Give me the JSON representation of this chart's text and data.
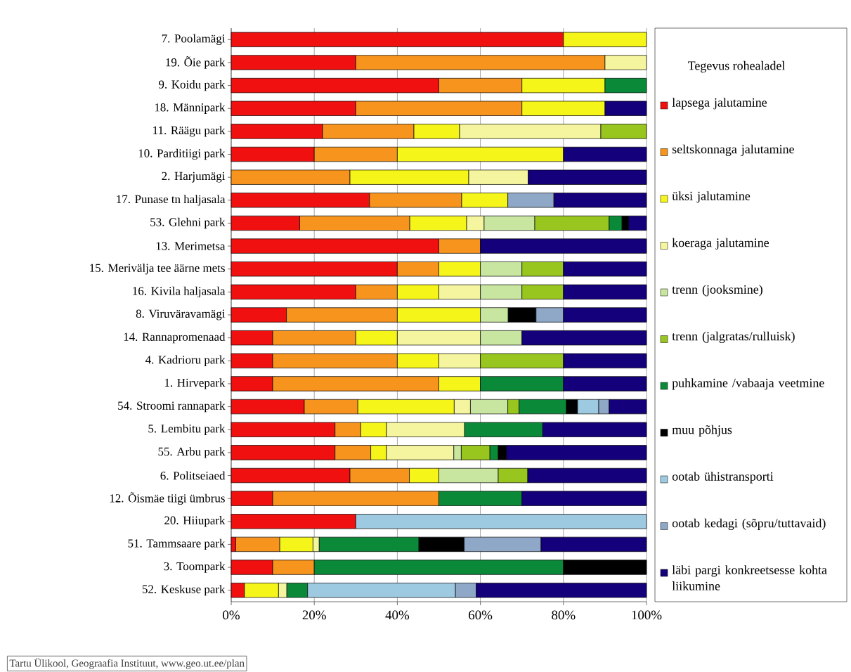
{
  "chart_data": {
    "type": "bar",
    "orientation": "horizontal",
    "stacked": true,
    "grid": "x",
    "legend": "right",
    "legend_title": "Tegevus rohealadel",
    "annotations": [
      "Tartu Ülikool, Geograafia Instituut, www.geo.ut.ee/plan"
    ],
    "categories": [
      "7. Poolamägi",
      "19. Õie park",
      "9. Koidu park",
      "18. Männipark",
      "11. Räägu park",
      "10. Parditiigi park",
      "2. Harjumägi",
      "17. Punase tn haljasala",
      "53. Glehni park",
      "13. Merimetsa",
      "15. Merivälja tee äärne mets",
      "16. Kivila haljasala",
      "8. Viruväravamägi",
      "14. Rannapromenaad",
      "4. Kadrioru park",
      "1. Hirvepark",
      "54. Stroomi rannapark",
      "5. Lembitu park",
      "55. Arbu park",
      "6. Politseiaed",
      "12. Õismäe tiigi ümbrus",
      "20. Hiiupark",
      "51. Tammsaare park",
      "3. Toompark",
      "52. Keskuse park"
    ],
    "xlim": [
      0,
      100
    ],
    "xticks": [
      {
        "value": 0,
        "label": "0%"
      },
      {
        "value": 20,
        "label": "20%"
      },
      {
        "value": 40,
        "label": "40%"
      },
      {
        "value": 60,
        "label": "60%"
      },
      {
        "value": 80,
        "label": "80%"
      },
      {
        "value": 100,
        "label": "100%"
      }
    ],
    "series": [
      {
        "name": "lapsega jalutamine",
        "color": "#f01010",
        "values": [
          80,
          30,
          50,
          30,
          22,
          20,
          null,
          33.3,
          16.5,
          50,
          40,
          30,
          13.3,
          10,
          10,
          10,
          17.6,
          25,
          25,
          28.6,
          10,
          30,
          1.1,
          10,
          3.2
        ]
      },
      {
        "name": "seltskonnaga jalutamine",
        "color": "#f7941d",
        "values": [
          null,
          60,
          20,
          40,
          22,
          20,
          28.6,
          22.2,
          26.5,
          10,
          10,
          10,
          26.7,
          20,
          30,
          40,
          12.9,
          6.2,
          8.6,
          14.3,
          40,
          null,
          10.6,
          10,
          null
        ]
      },
      {
        "name": "üksi jalutamine",
        "color": "#f5f51a",
        "values": [
          20,
          null,
          20,
          20,
          11,
          40,
          28.6,
          11.1,
          13.7,
          null,
          10,
          10,
          20,
          10,
          10,
          10,
          23.2,
          6.2,
          3.8,
          7.1,
          null,
          null,
          8.0,
          null,
          8.2
        ]
      },
      {
        "name": "koeraga jalutamine",
        "color": "#f5f5a0",
        "values": [
          null,
          10,
          null,
          null,
          34,
          null,
          14.3,
          null,
          4.2,
          null,
          null,
          10,
          null,
          20,
          10,
          null,
          3.9,
          18.8,
          16.2,
          null,
          null,
          null,
          1.5,
          null,
          2.0
        ]
      },
      {
        "name": "trenn (jooksmine)",
        "color": "#c8e6a0",
        "values": [
          null,
          null,
          null,
          null,
          null,
          null,
          null,
          null,
          12.2,
          null,
          10,
          10,
          6.7,
          10,
          null,
          null,
          9.0,
          null,
          1.8,
          14.3,
          null,
          null,
          null,
          null,
          null
        ]
      },
      {
        "name": "trenn (jalgratas/rulluisk)",
        "color": "#99c61e",
        "values": [
          null,
          null,
          null,
          null,
          11,
          null,
          null,
          null,
          17.9,
          null,
          10,
          10,
          null,
          null,
          20,
          null,
          2.7,
          null,
          6.9,
          7.1,
          null,
          null,
          null,
          null,
          null
        ]
      },
      {
        "name": "puhkamine /vabaaja veetmine",
        "color": "#0a8a38",
        "values": [
          null,
          null,
          10,
          null,
          null,
          null,
          null,
          null,
          3.1,
          null,
          null,
          null,
          null,
          null,
          null,
          20,
          11.4,
          18.8,
          2.0,
          null,
          20,
          null,
          24.0,
          60,
          5.0
        ]
      },
      {
        "name": "muu põhjus",
        "color": "#000000",
        "values": [
          null,
          null,
          null,
          null,
          null,
          null,
          null,
          null,
          1.6,
          null,
          null,
          null,
          6.7,
          null,
          null,
          null,
          2.7,
          null,
          2.0,
          null,
          null,
          null,
          10.9,
          20,
          null
        ]
      },
      {
        "name": "ootab ühistransporti",
        "color": "#9ecae1",
        "values": [
          null,
          null,
          null,
          null,
          null,
          null,
          null,
          null,
          null,
          null,
          null,
          null,
          null,
          null,
          null,
          null,
          5.1,
          null,
          null,
          null,
          null,
          70,
          null,
          null,
          35.6
        ]
      },
      {
        "name": "ootab kedagi (sõpru/tuttavaid)",
        "color": "#8fa8c8",
        "values": [
          null,
          null,
          null,
          null,
          null,
          null,
          null,
          11.1,
          null,
          null,
          null,
          null,
          6.6,
          null,
          null,
          null,
          2.5,
          null,
          null,
          null,
          null,
          null,
          18.5,
          null,
          5.0
        ]
      },
      {
        "name": "läbi pargi konkreetsesse kohta liikumine",
        "color": "#14007a",
        "values": [
          null,
          null,
          null,
          10,
          null,
          20,
          28.5,
          22.3,
          4.3,
          40,
          20,
          20,
          20,
          30,
          20,
          20,
          9.0,
          25,
          33.7,
          28.6,
          30,
          null,
          25.4,
          null,
          41.0
        ]
      }
    ]
  }
}
